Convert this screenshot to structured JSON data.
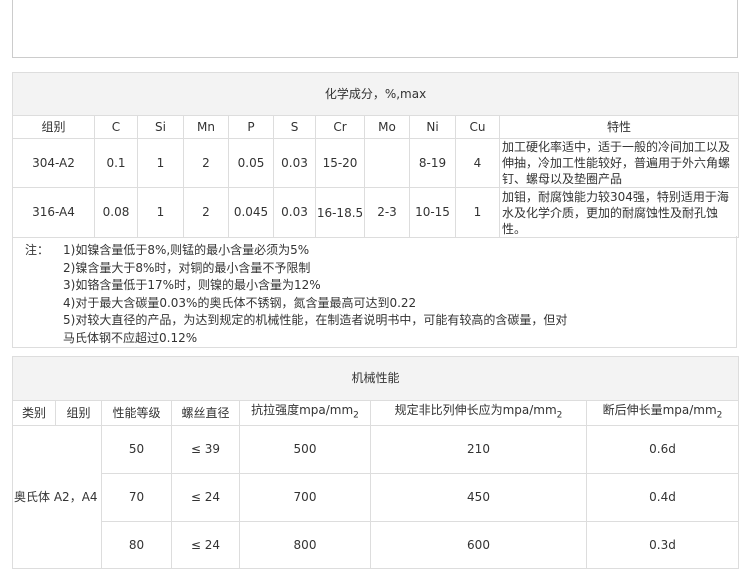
{
  "chem": {
    "title": "化学成分，%,max",
    "headers": [
      "组别",
      "C",
      "Si",
      "Mn",
      "P",
      "S",
      "Cr",
      "Mo",
      "Ni",
      "Cu",
      "特性"
    ],
    "rows": [
      [
        "304-A2",
        "0.1",
        "1",
        "2",
        "0.05",
        "0.03",
        "15-20",
        "",
        "8-19",
        "4",
        "加工硬化率适中，适于一般的冷间加工以及伸抽，冷加工性能较好，普遍用于外六角螺钉、螺母以及垫圈产品"
      ],
      [
        "316-A4",
        "0.08",
        "1",
        "2",
        "0.045",
        "0.03",
        "16-18.5",
        "2-3",
        "10-15",
        "1",
        "加钼，耐腐蚀能力较304强，特别适用于海水及化学介质，更加的耐腐蚀性及耐孔蚀性。"
      ]
    ]
  },
  "notes": {
    "label": "注：",
    "lines": [
      "1)如镍含量低于8%,则锰的最小含量必须为5%",
      "2)镍含量大于8%时，对铜的最小含量不予限制",
      "3)如铬含量低于17%时，则镍的最小含量为12%",
      "4)对于最大含碳量0.03%的奥氏体不锈钢，氮含量最高可达到0.22",
      "5)对较大直径的产品，为达到规定的机械性能，在制造者说明书中，可能有较高的含碳量，但对",
      "马氏体钢不应超过0.12%"
    ]
  },
  "mech": {
    "title": "机械性能",
    "headers": [
      "类别",
      "组别",
      "性能等级",
      "螺丝直径",
      "抗拉强度mpa/mm",
      "规定非比列伸长应为mpa/mm",
      "断后伸长量mpa/mm"
    ],
    "unit_sub": "2",
    "category": "奥氏体",
    "group": "A2，A4",
    "rows": [
      [
        "50",
        "≤ 39",
        "500",
        "210",
        "0.6d"
      ],
      [
        "70",
        "≤ 24",
        "700",
        "450",
        "0.4d"
      ],
      [
        "80",
        "≤ 24",
        "800",
        "600",
        "0.3d"
      ]
    ]
  }
}
